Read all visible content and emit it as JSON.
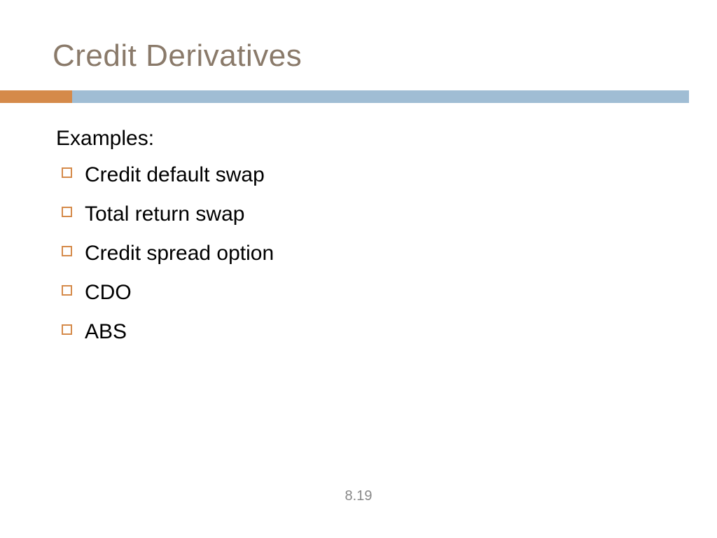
{
  "slide": {
    "title": "Credit Derivatives",
    "subheading": "Examples:",
    "bullets": [
      "Credit default swap",
      "Total return swap",
      "Credit spread option",
      "CDO",
      "ABS"
    ],
    "page_number": "8.19"
  },
  "styling": {
    "title_color": "#8a7a6a",
    "title_fontsize": 44,
    "body_fontsize": 30,
    "body_color": "#000000",
    "background_color": "#ffffff",
    "divider_accent_color": "#d58a4a",
    "divider_main_color": "#a0bdd4",
    "divider_accent_width": 103,
    "divider_height": 18,
    "bullet_border_color": "#d58a4a",
    "bullet_size": 15,
    "page_number_color": "#888888",
    "page_number_fontsize": 20,
    "font_family": "Century Gothic"
  }
}
